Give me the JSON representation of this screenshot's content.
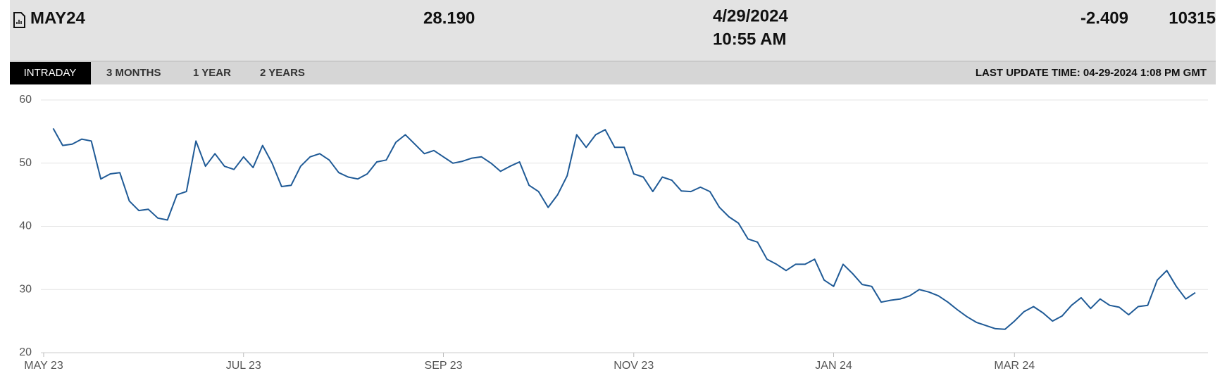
{
  "header": {
    "title": "MAY24",
    "price": "28.190",
    "date": "4/29/2024",
    "time": "10:55 AM",
    "change": "-2.409",
    "volume": "10315"
  },
  "tabs": [
    "INTRADAY",
    "3 MONTHS",
    "1 YEAR",
    "2 YEARS"
  ],
  "last_update": "LAST UPDATE TIME: 04-29-2024 1:08 PM GMT",
  "chart_data": {
    "type": "line",
    "categories": [
      "MAY 23",
      null,
      null,
      null,
      null,
      null,
      null,
      null,
      null,
      null,
      null,
      null,
      null,
      null,
      null,
      null,
      null,
      null,
      null,
      null,
      null,
      "JUL 23",
      null,
      null,
      null,
      null,
      null,
      null,
      null,
      null,
      null,
      null,
      null,
      null,
      null,
      null,
      null,
      null,
      null,
      null,
      null,
      null,
      "SEP 23",
      null,
      null,
      null,
      null,
      null,
      null,
      null,
      null,
      null,
      null,
      null,
      null,
      null,
      null,
      null,
      null,
      null,
      null,
      null,
      "NOV 23",
      null,
      null,
      null,
      null,
      null,
      null,
      null,
      null,
      null,
      null,
      null,
      null,
      null,
      null,
      null,
      null,
      null,
      null,
      null,
      null,
      "JAN 24",
      null,
      null,
      null,
      null,
      null,
      null,
      null,
      null,
      null,
      null,
      null,
      null,
      null,
      null,
      null,
      null,
      null,
      null,
      "MAR 24",
      null,
      null,
      null,
      null,
      null,
      null,
      null,
      null,
      null,
      null,
      null,
      null,
      null,
      null,
      null,
      null,
      null,
      null,
      null
    ],
    "series": [
      {
        "color": "#1f5a96",
        "values": [
          null,
          55.5,
          52.8,
          53,
          53.8,
          53.5,
          47.5,
          48.3,
          48.5,
          44,
          42.5,
          42.7,
          41.3,
          41,
          45,
          45.5,
          53.5,
          49.5,
          51.5,
          49.5,
          49,
          51,
          49.3,
          52.8,
          50,
          46.3,
          46.5,
          49.5,
          51,
          51.5,
          50.5,
          48.5,
          47.8,
          47.5,
          48.3,
          50.2,
          50.5,
          53.3,
          54.5,
          53,
          51.5,
          52,
          51,
          50,
          50.3,
          50.8,
          51,
          50,
          48.7,
          49.5,
          50.2,
          46.5,
          45.5,
          43,
          45,
          48,
          54.5,
          52.5,
          54.5,
          55.3,
          52.5,
          52.5,
          48.3,
          47.8,
          45.5,
          47.8,
          47.3,
          45.6,
          45.5,
          46.2,
          45.5,
          43,
          41.5,
          40.5,
          38,
          37.5,
          34.8,
          34,
          33,
          34,
          34,
          34.8,
          31.5,
          30.5,
          34,
          32.5,
          30.8,
          30.5,
          28,
          28.3,
          28.5,
          29,
          30,
          29.6,
          29,
          28,
          26.8,
          25.7,
          24.8,
          24.3,
          23.8,
          23.7,
          25,
          26.5,
          27.3,
          26.3,
          25,
          25.8,
          27.5,
          28.7,
          27,
          28.5,
          27.5,
          27.2,
          26,
          27.3,
          27.5,
          31.5,
          33,
          30.5,
          28.5,
          29.5
        ]
      }
    ],
    "ylim": [
      20,
      60
    ],
    "yticks": [
      20,
      30,
      40,
      50,
      60
    ],
    "grid": true
  }
}
